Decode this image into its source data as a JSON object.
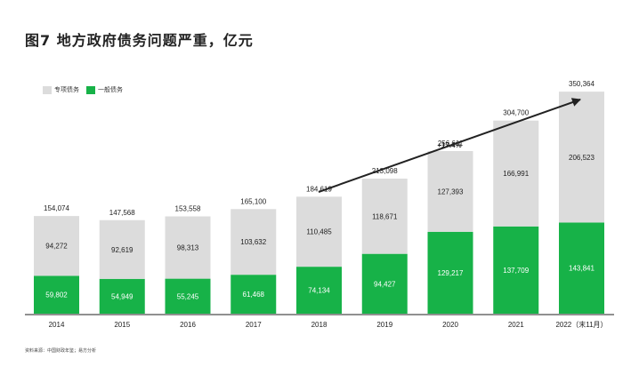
{
  "title": "图7 地方政府债务问题严重，亿元",
  "source": "资料来源：中国财政年鉴；易方分析",
  "colors": {
    "special": "#dcdcdc",
    "general": "#17b248",
    "axis": "#222222",
    "text": "#222222"
  },
  "chart_data": {
    "type": "bar",
    "stacked": true,
    "categories": [
      "2014",
      "2015",
      "2016",
      "2017",
      "2018",
      "2019",
      "2020",
      "2021",
      "2022（末11月）"
    ],
    "series": [
      {
        "name": "专项债务",
        "values": [
          94272,
          92619,
          98313,
          103632,
          110485,
          118671,
          127393,
          166991,
          206523
        ]
      },
      {
        "name": "一般债务",
        "values": [
          59802,
          54949,
          55245,
          61468,
          74134,
          94427,
          129217,
          137709,
          143841
        ]
      }
    ],
    "totals": [
      154074,
      147568,
      153558,
      165100,
      184619,
      213098,
      256611,
      304700,
      350364
    ],
    "value_labels": {
      "special": [
        "94,272",
        "92,619",
        "98,313",
        "103,632",
        "110,485",
        "118,671",
        "127,393",
        "166,991",
        "206,523"
      ],
      "general": [
        "59,802",
        "54,949",
        "55,245",
        "61,468",
        "74,134",
        "94,427",
        "129,217",
        "137,709",
        "143,841"
      ],
      "totals": [
        "154,074",
        "147,568",
        "153,558",
        "165,100",
        "184,619",
        "213,098",
        "256,611",
        "304,700",
        "350,364"
      ]
    },
    "annotation": {
      "text": "+17.4%",
      "from_category": "2018",
      "to_category": "2022（末11月）"
    },
    "legend": "top-left",
    "grid": false,
    "ylim": [
      0,
      380000
    ]
  }
}
